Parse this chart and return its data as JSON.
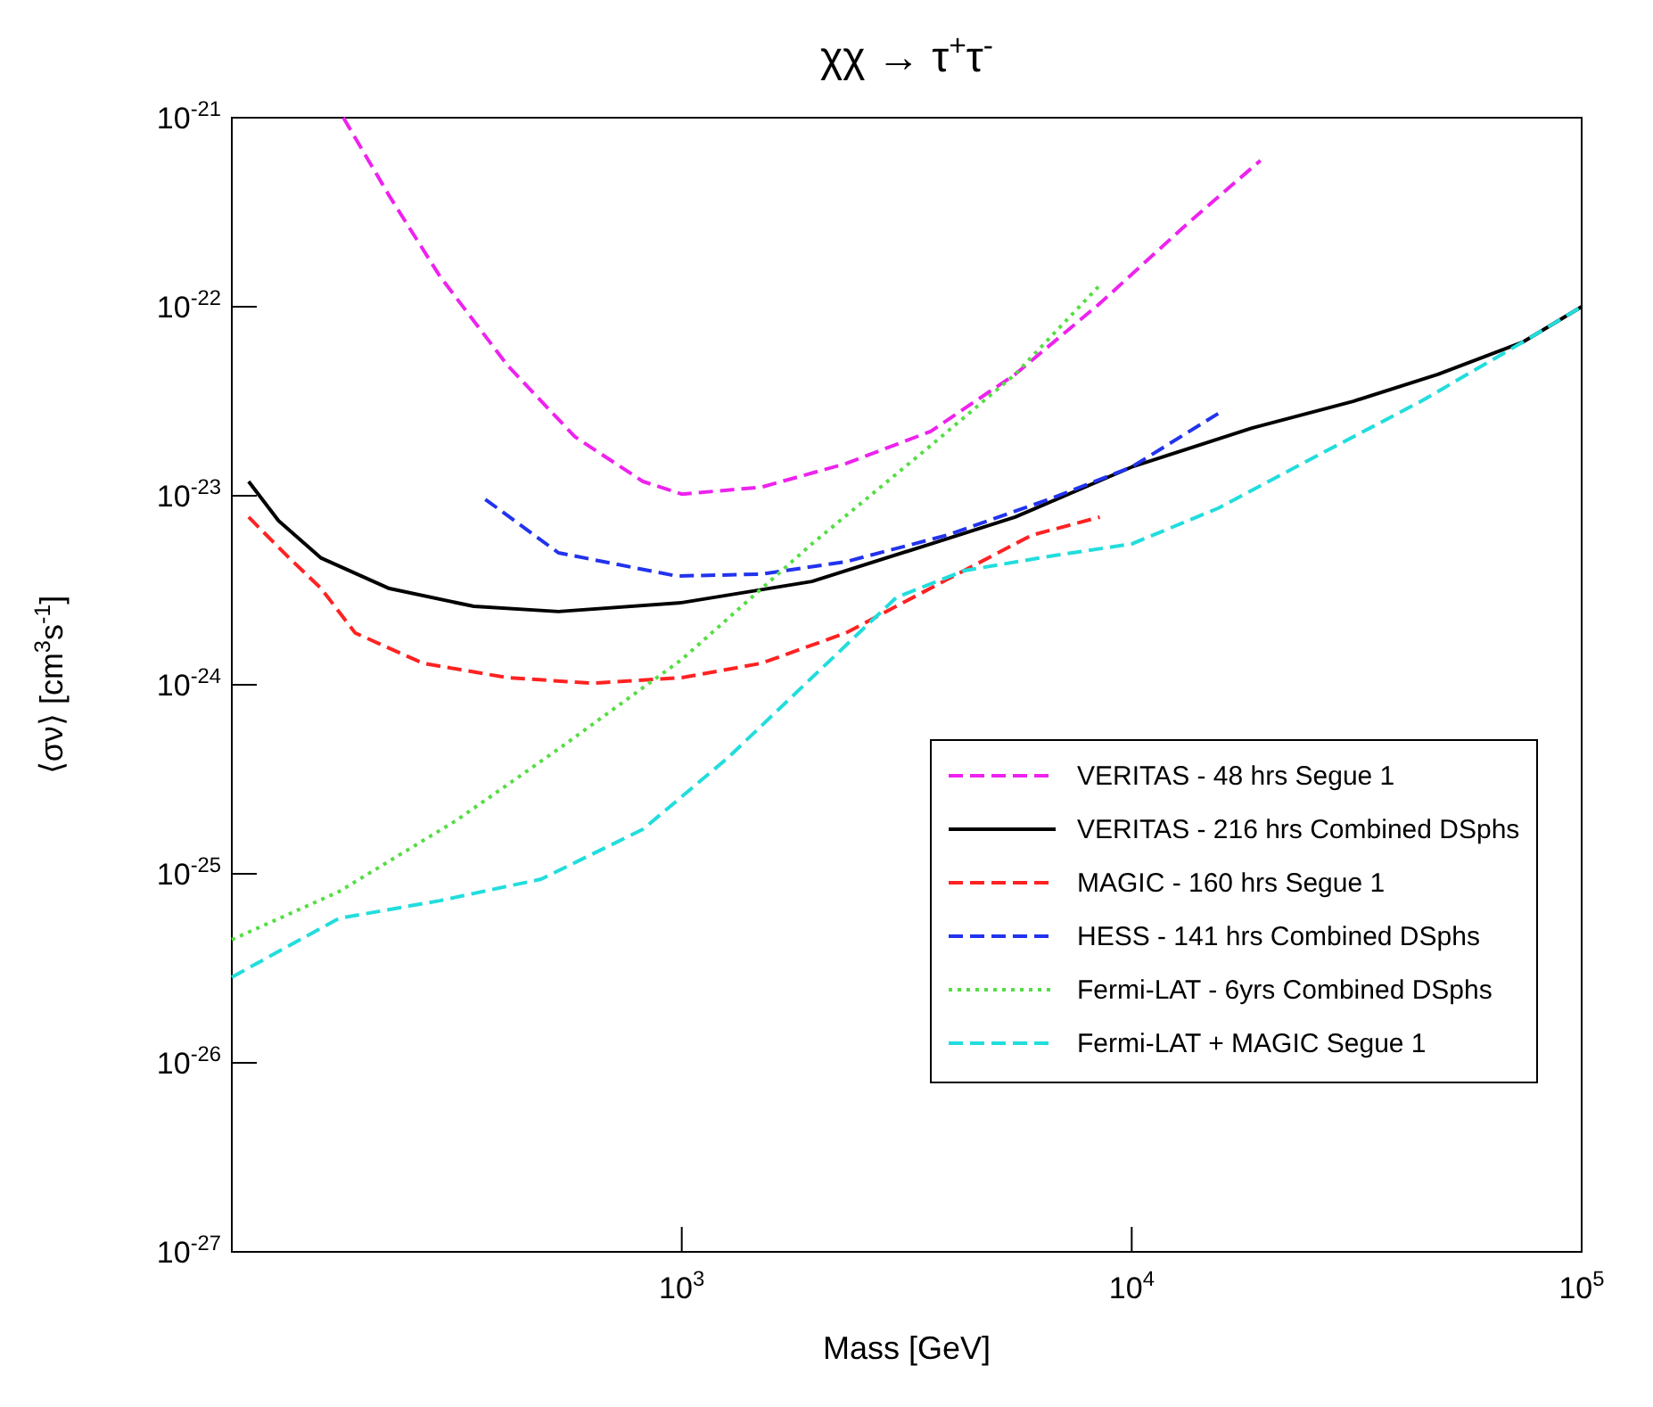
{
  "chart_data": {
    "type": "line",
    "title": "χχ → τ$^{+}$τ$^{-}$",
    "xlabel": "Mass [GeV]",
    "ylabel": "⟨σν⟩ [cm$^{3}$s$^{-1}$]",
    "log": "xy",
    "xlim": [
      100,
      100000
    ],
    "ylim": [
      1e-27,
      1e-21
    ],
    "xticks": [
      {
        "value": 1000,
        "label": "10$^{3}$"
      },
      {
        "value": 10000,
        "label": "10$^{4}$"
      },
      {
        "value": 100000,
        "label": "10$^{5}$"
      }
    ],
    "yticks": [
      {
        "value": 1e-27,
        "label": "10$^{-27}$"
      },
      {
        "value": 1e-26,
        "label": "10$^{-26}$"
      },
      {
        "value": 1e-25,
        "label": "10$^{-25}$"
      },
      {
        "value": 1e-24,
        "label": "10$^{-24}$"
      },
      {
        "value": 1e-23,
        "label": "10$^{-23}$"
      },
      {
        "value": 1e-22,
        "label": "10$^{-22}$"
      },
      {
        "value": 1e-21,
        "label": "10$^{-21}$"
      }
    ],
    "grid": false,
    "legend": "bottom right",
    "series": [
      {
        "name": "VERITAS - 48 hrs Segue 1",
        "color": "#ee22ee",
        "line_style": "dashed",
        "x": [
          177,
          224,
          290,
          410,
          579,
          820,
          1000,
          1503,
          2317,
          3573,
          5508,
          8492,
          13092,
          19320
        ],
        "values": [
          1e-21,
          3.85e-22,
          1.45e-22,
          4.89e-23,
          2.05e-23,
          1.19e-23,
          1.02e-23,
          1.11e-23,
          1.48e-23,
          2.19e-23,
          4.39e-23,
          1.04e-22,
          2.66e-22,
          5.94e-22
        ]
      },
      {
        "name": "VERITAS - 216 hrs Combined DSphs",
        "color": "#000000",
        "line_style": "solid",
        "x": [
          109,
          127,
          158,
          224,
          345,
          532,
          1000,
          1946,
          3573,
          5508,
          10000,
          18490,
          31050,
          47900,
          73800,
          100000
        ],
        "values": [
          1.19e-23,
          7.38e-24,
          4.68e-24,
          3.23e-24,
          2.6e-24,
          2.44e-24,
          2.72e-24,
          3.52e-24,
          5.56e-24,
          7.71e-24,
          1.42e-23,
          2.28e-23,
          3.16e-23,
          4.39e-23,
          6.48e-23,
          1e-22
        ]
      },
      {
        "name": "MAGIC - 160 hrs Segue 1",
        "color": "#ff2222",
        "line_style": "dashed",
        "x": [
          109,
          133,
          158,
          188,
          266,
          410,
          632,
          1000,
          1503,
          2317,
          3890,
          5998,
          8492
        ],
        "values": [
          7.71e-24,
          4.78e-24,
          3.23e-24,
          1.88e-24,
          1.3e-24,
          1.09e-24,
          1.02e-24,
          1.09e-24,
          1.3e-24,
          1.88e-24,
          3.61e-24,
          6.19e-24,
          7.71e-24
        ]
      },
      {
        "name": "HESS - 141 hrs Combined DSphs",
        "color": "#2233ee",
        "line_style": "dashed",
        "x": [
          366,
          532,
          975,
          1503,
          2317,
          3890,
          6546,
          10000,
          15560
        ],
        "values": [
          9.57e-24,
          4.99e-24,
          3.76e-24,
          3.85e-24,
          4.48e-24,
          6.19e-24,
          9.57e-24,
          1.42e-23,
          2.72e-23
        ]
      },
      {
        "name": "Fermi-LAT - 6yrs Combined DSphs",
        "color": "#55dd44",
        "line_style": "dotted",
        "x": [
          100,
          173,
          316,
          532,
          1000,
          1946,
          3573,
          5508,
          8492
        ],
        "values": [
          4.48e-26,
          8.05e-26,
          1.92e-25,
          4.57e-25,
          1.36e-24,
          5.56e-24,
          1.84e-23,
          4.39e-23,
          1.3e-22
        ]
      },
      {
        "name": "Fermi-LAT + MAGIC Segue 1",
        "color": "#22dddd",
        "line_style": "dashed",
        "x": [
          100,
          173,
          290,
          487,
          820,
          1265,
          1946,
          2999,
          4249,
          6546,
          10000,
          15560,
          26100,
          43950,
          73800,
          100000
        ],
        "values": [
          2.84e-26,
          5.81e-26,
          7.21e-26,
          9.37e-26,
          1.72e-25,
          4.1e-25,
          1.09e-24,
          2.9e-24,
          4.02e-24,
          4.78e-24,
          5.56e-24,
          8.59e-24,
          1.65e-23,
          3.16e-23,
          6.48e-23,
          1e-22
        ]
      }
    ]
  }
}
